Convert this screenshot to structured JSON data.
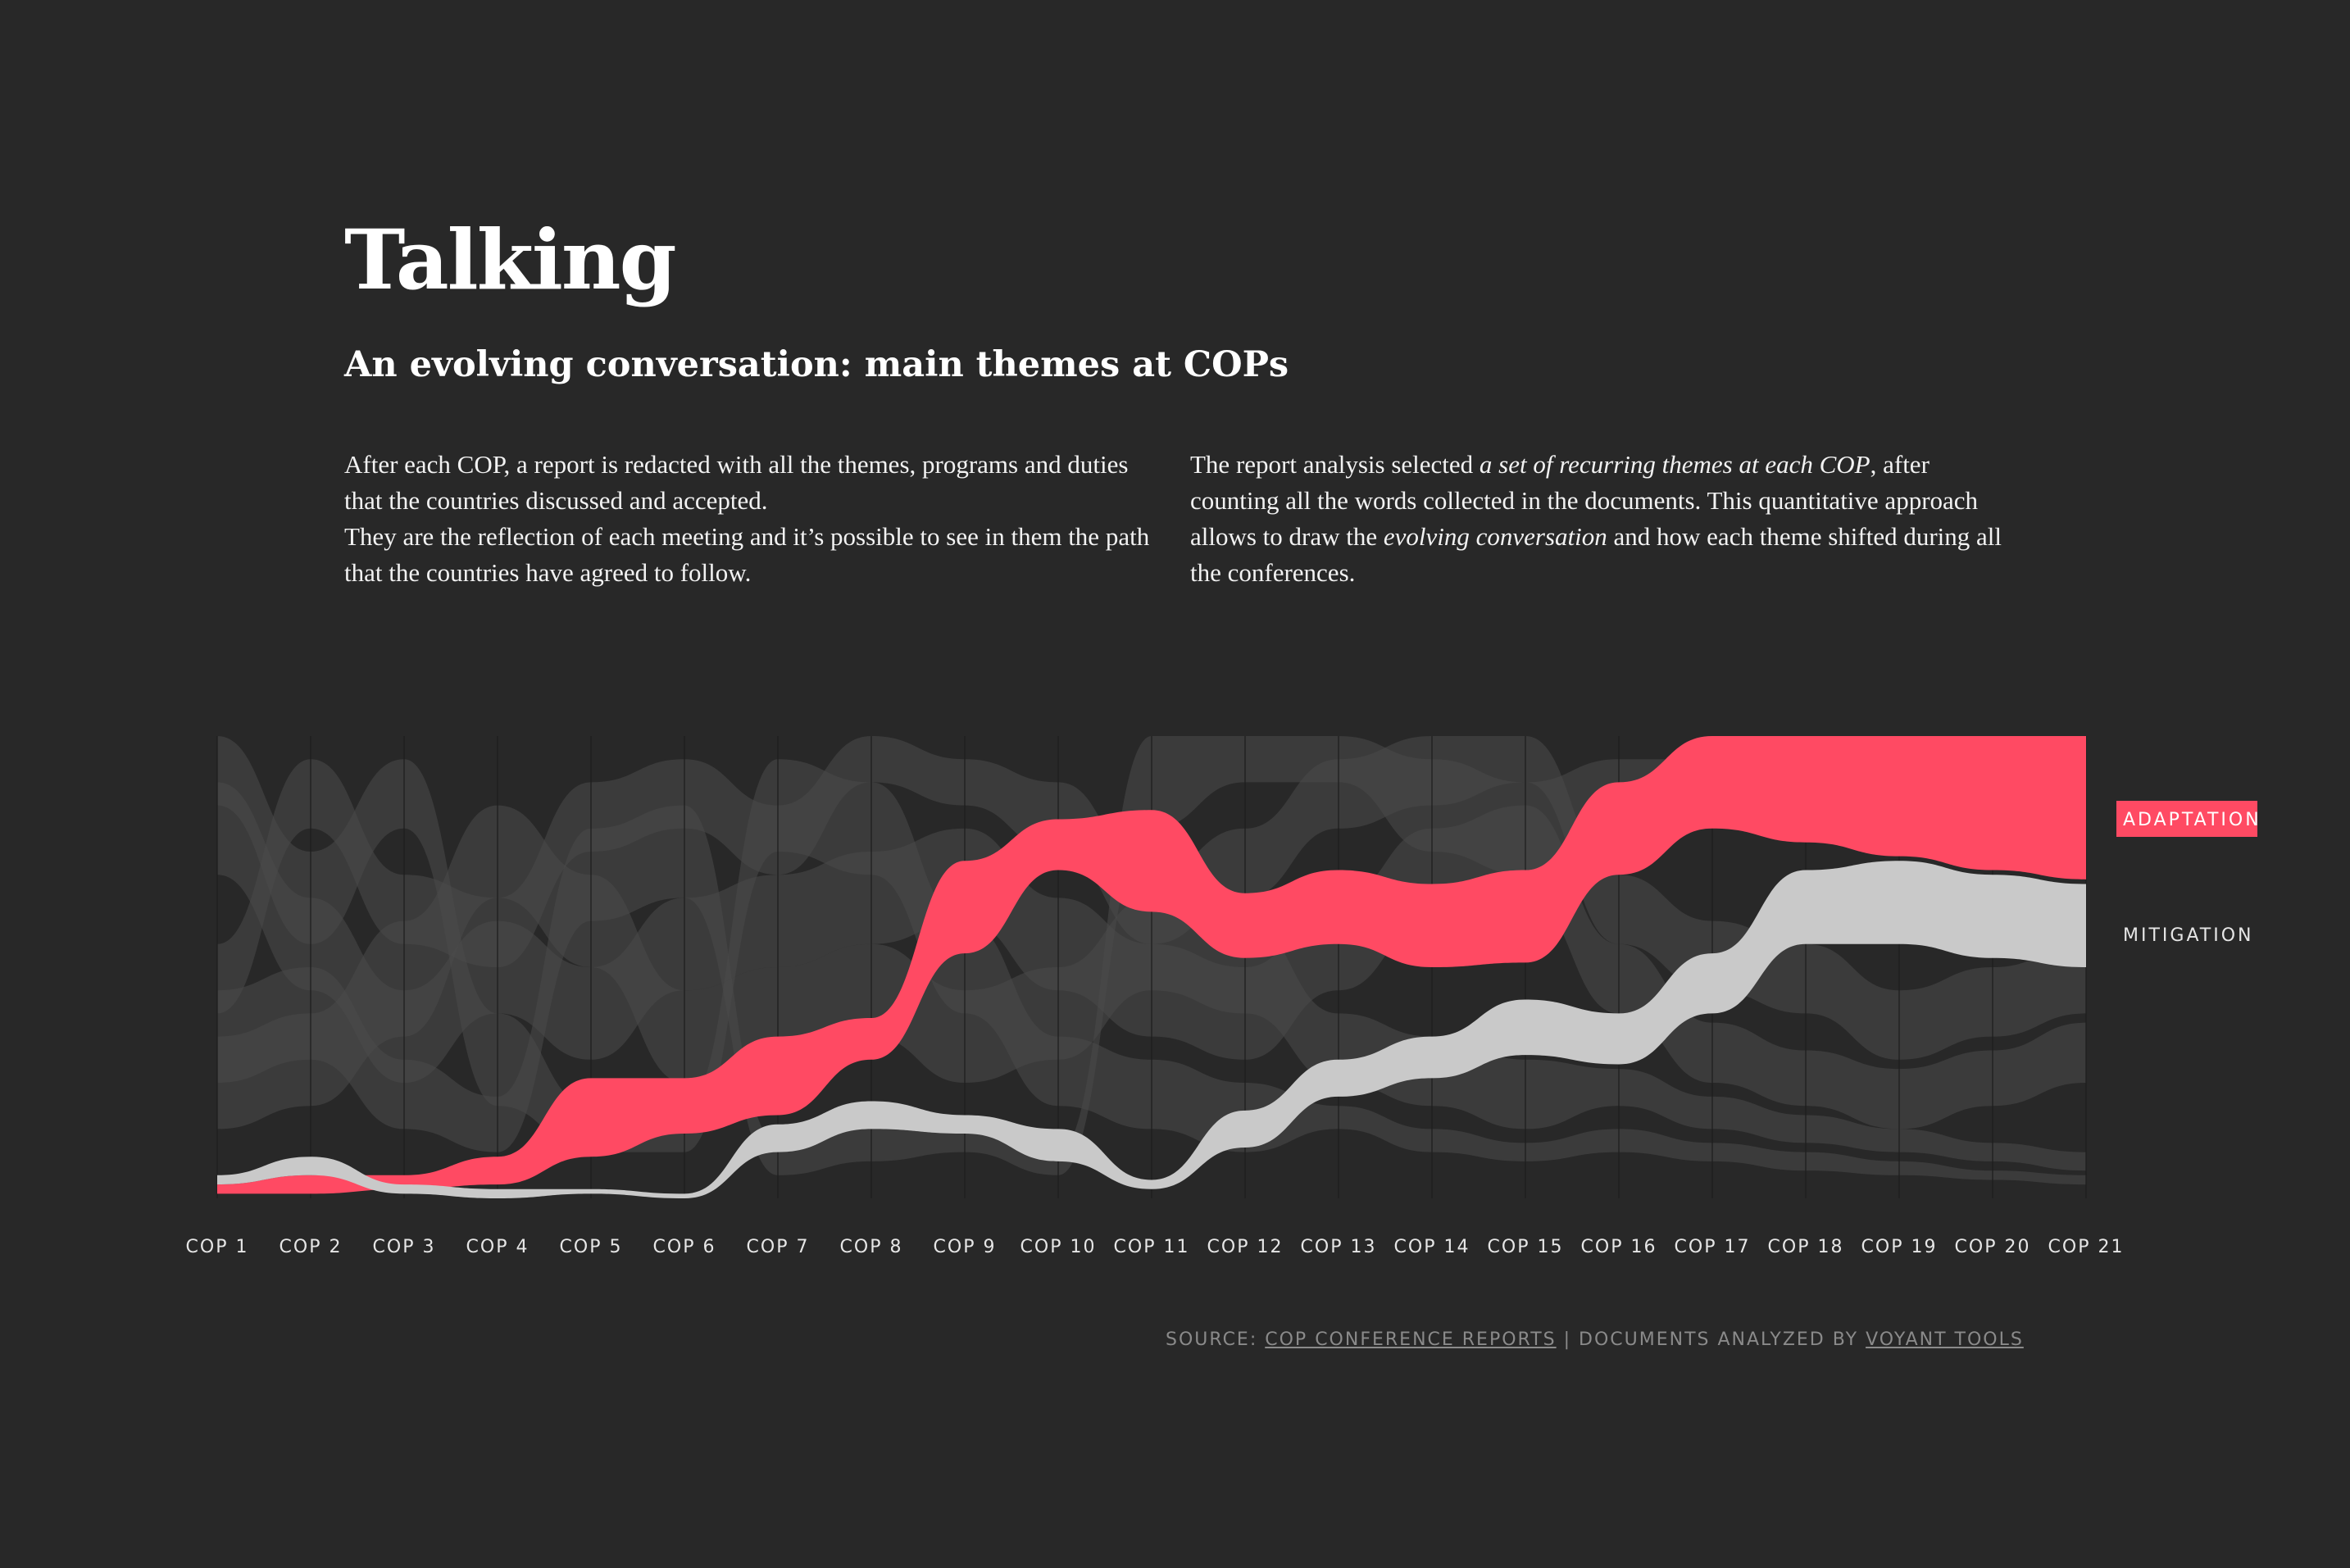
{
  "header": {
    "title": "Talking",
    "subtitle": "An evolving conversation: main themes at COPs"
  },
  "intro": {
    "left_p1": "After each COP, a report is redacted with all the themes, programs and duties that the countries discussed and accepted.",
    "left_p2": "They are the reflection of each meeting and it’s possible to see in them the path that the countries have agreed to follow.",
    "right_a": "The report analysis selected ",
    "right_b": "a set of recurring themes at each COP",
    "right_c": ", after counting all the words collected in the documents. This quantitative approach allows to draw the ",
    "right_d": "evolving conversation",
    "right_e": " and how each theme shifted during all the conferences."
  },
  "colors": {
    "background": "#282828",
    "adaptation": "#ff4a63",
    "mitigation": "#c9c9c9",
    "other_themes": "#4a4a4a"
  },
  "chart_data": {
    "type": "area",
    "layout": "ranked-stream",
    "categories": [
      "COP 1",
      "COP 2",
      "COP 3",
      "COP 4",
      "COP 5",
      "COP 6",
      "COP 7",
      "COP 8",
      "COP 9",
      "COP 10",
      "COP 11",
      "COP 12",
      "COP 13",
      "COP 14",
      "COP 15",
      "COP 16",
      "COP 17",
      "COP 18",
      "COP 19",
      "COP 20",
      "COP 21"
    ],
    "series": [
      {
        "name": "ADAPTATION",
        "highlight": true,
        "color": "#ff4a63",
        "bottom": [
          0.99,
          0.99,
          0.98,
          0.97,
          0.91,
          0.86,
          0.82,
          0.7,
          0.47,
          0.29,
          0.38,
          0.48,
          0.45,
          0.5,
          0.49,
          0.3,
          0.2,
          0.23,
          0.26,
          0.29,
          0.31
        ],
        "top": [
          0.97,
          0.95,
          0.95,
          0.91,
          0.74,
          0.74,
          0.65,
          0.61,
          0.27,
          0.18,
          0.16,
          0.34,
          0.29,
          0.32,
          0.29,
          0.1,
          0.0,
          0.0,
          0.0,
          0.0,
          0.0
        ]
      },
      {
        "name": "MITIGATION",
        "highlight": true,
        "color": "#c9c9c9",
        "bottom": [
          0.97,
          0.95,
          0.99,
          1.0,
          0.99,
          1.0,
          0.9,
          0.85,
          0.86,
          0.92,
          0.98,
          0.89,
          0.78,
          0.74,
          0.69,
          0.71,
          0.6,
          0.45,
          0.45,
          0.48,
          0.5
        ],
        "top": [
          0.95,
          0.91,
          0.97,
          0.98,
          0.98,
          0.99,
          0.84,
          0.79,
          0.82,
          0.85,
          0.96,
          0.81,
          0.7,
          0.65,
          0.57,
          0.6,
          0.47,
          0.29,
          0.27,
          0.3,
          0.32
        ]
      },
      {
        "name": "",
        "bottom": [
          0.6,
          0.2,
          0.45,
          0.5,
          0.25,
          0.2,
          0.3,
          0.1,
          0.15,
          0.25,
          0.45,
          0.35,
          0.2,
          0.15,
          0.1,
          0.45,
          0.55,
          0.6,
          0.7,
          0.65,
          0.6
        ],
        "top": [
          0.45,
          0.05,
          0.3,
          0.35,
          0.1,
          0.05,
          0.15,
          0.0,
          0.05,
          0.1,
          0.3,
          0.2,
          0.05,
          0.0,
          0.0,
          0.3,
          0.4,
          0.45,
          0.55,
          0.5,
          0.45
        ]
      },
      {
        "name": "",
        "bottom": [
          0.3,
          0.55,
          0.75,
          0.6,
          0.7,
          0.55,
          0.5,
          0.45,
          0.4,
          0.55,
          0.65,
          0.7,
          0.55,
          0.4,
          0.35,
          0.6,
          0.75,
          0.8,
          0.85,
          0.8,
          0.75
        ],
        "top": [
          0.1,
          0.35,
          0.55,
          0.4,
          0.5,
          0.35,
          0.3,
          0.25,
          0.2,
          0.35,
          0.45,
          0.5,
          0.35,
          0.2,
          0.15,
          0.45,
          0.62,
          0.68,
          0.72,
          0.68,
          0.62
        ]
      },
      {
        "name": "",
        "bottom": [
          0.85,
          0.8,
          0.65,
          0.35,
          0.5,
          0.75,
          0.7,
          0.65,
          0.75,
          0.7,
          0.55,
          0.6,
          0.75,
          0.8,
          0.85,
          0.8,
          0.85,
          0.88,
          0.9,
          0.92,
          0.94
        ],
        "top": [
          0.65,
          0.6,
          0.4,
          0.15,
          0.3,
          0.55,
          0.5,
          0.45,
          0.55,
          0.5,
          0.35,
          0.4,
          0.6,
          0.65,
          0.7,
          0.72,
          0.78,
          0.82,
          0.85,
          0.88,
          0.9
        ]
      },
      {
        "name": "",
        "bottom": [
          0.15,
          0.45,
          0.2,
          0.8,
          0.9,
          0.9,
          0.25,
          0.3,
          0.6,
          0.8,
          0.85,
          0.9,
          0.85,
          0.9,
          0.92,
          0.9,
          0.92,
          0.94,
          0.95,
          0.96,
          0.97
        ],
        "top": [
          0.0,
          0.25,
          0.05,
          0.6,
          0.8,
          0.8,
          0.05,
          0.1,
          0.4,
          0.65,
          0.7,
          0.75,
          0.8,
          0.85,
          0.88,
          0.85,
          0.88,
          0.9,
          0.92,
          0.94,
          0.95
        ]
      },
      {
        "name": "",
        "bottom": [
          0.75,
          0.7,
          0.85,
          0.9,
          0.4,
          0.35,
          0.95,
          0.92,
          0.9,
          0.95,
          0.2,
          0.1,
          0.1,
          0.25,
          0.3,
          0.2,
          0.15,
          0.1,
          0.1,
          0.15,
          0.2
        ],
        "top": [
          0.55,
          0.5,
          0.7,
          0.78,
          0.2,
          0.15,
          0.88,
          0.85,
          0.85,
          0.9,
          0.0,
          0.0,
          0.0,
          0.05,
          0.1,
          0.05,
          0.05,
          0.02,
          0.02,
          0.05,
          0.08
        ]
      }
    ],
    "legend": [
      "ADAPTATION",
      "MITIGATION"
    ],
    "legend_placement": "right",
    "grid": "vertical"
  },
  "source": {
    "prefix": "SOURCE: ",
    "link1": "COP CONFERENCE REPORTS",
    "middle": " | DOCUMENTS ANALYZED BY ",
    "link2": "VOYANT TOOLS"
  }
}
